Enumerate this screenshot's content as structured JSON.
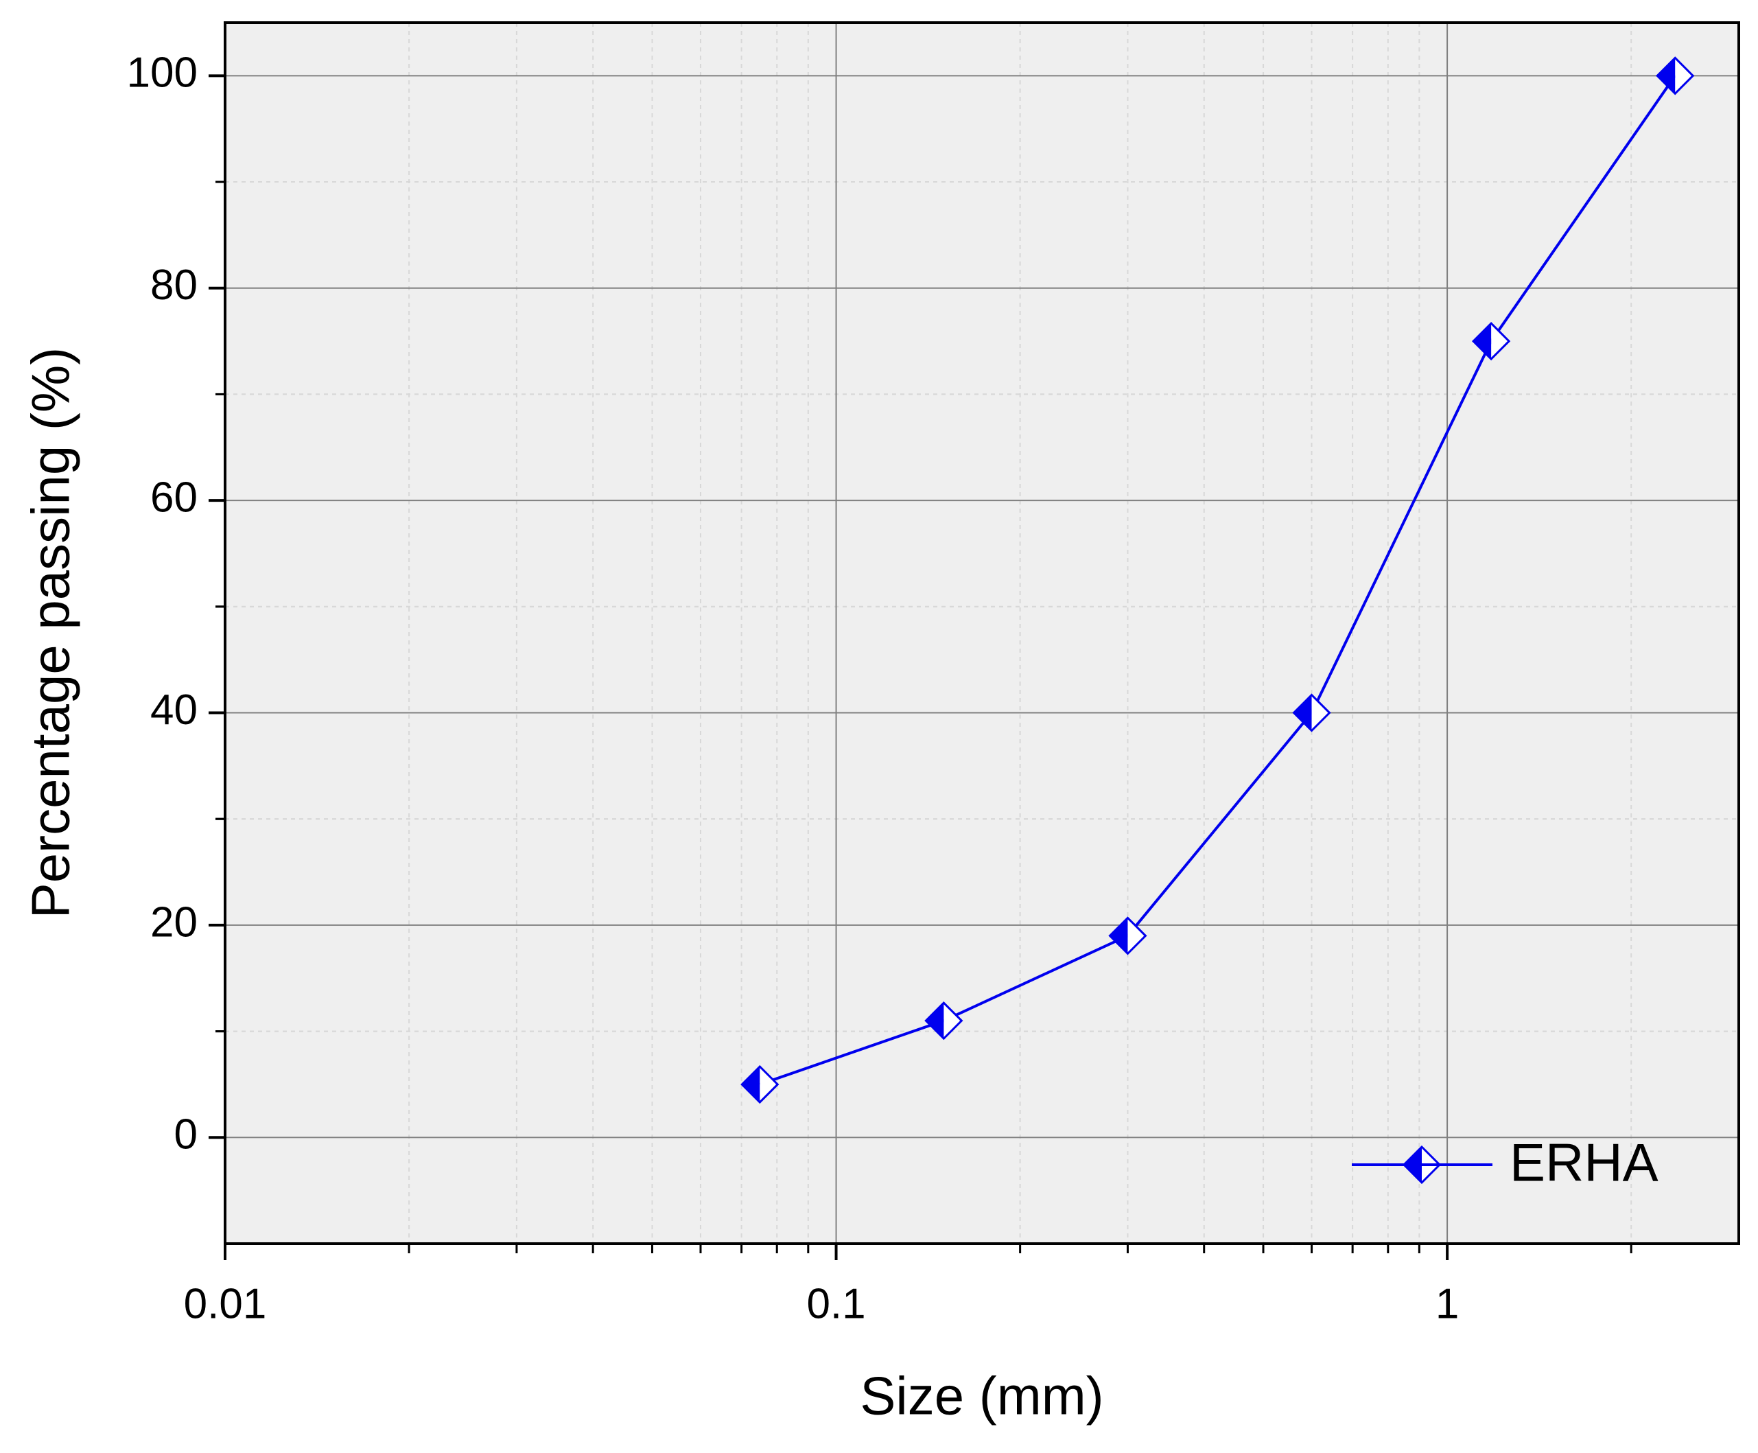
{
  "chart_data": {
    "type": "line",
    "x_label": "Size (mm)",
    "y_label": "Percentage passing (%)",
    "x": [
      0.075,
      0.15,
      0.3,
      0.6,
      1.18,
      2.36
    ],
    "series": [
      {
        "name": "ERHA",
        "color": "#0000ee",
        "values": [
          5,
          11,
          19,
          40,
          75,
          100
        ]
      }
    ],
    "xlim": [
      0.01,
      3
    ],
    "xticks": [
      0.01,
      0.1,
      1
    ],
    "xscale": "log",
    "ylim": [
      -10,
      105
    ],
    "yticks": [
      0,
      20,
      40,
      60,
      80,
      100
    ],
    "grid": true,
    "legend": "lower right",
    "background": "#efefef"
  }
}
